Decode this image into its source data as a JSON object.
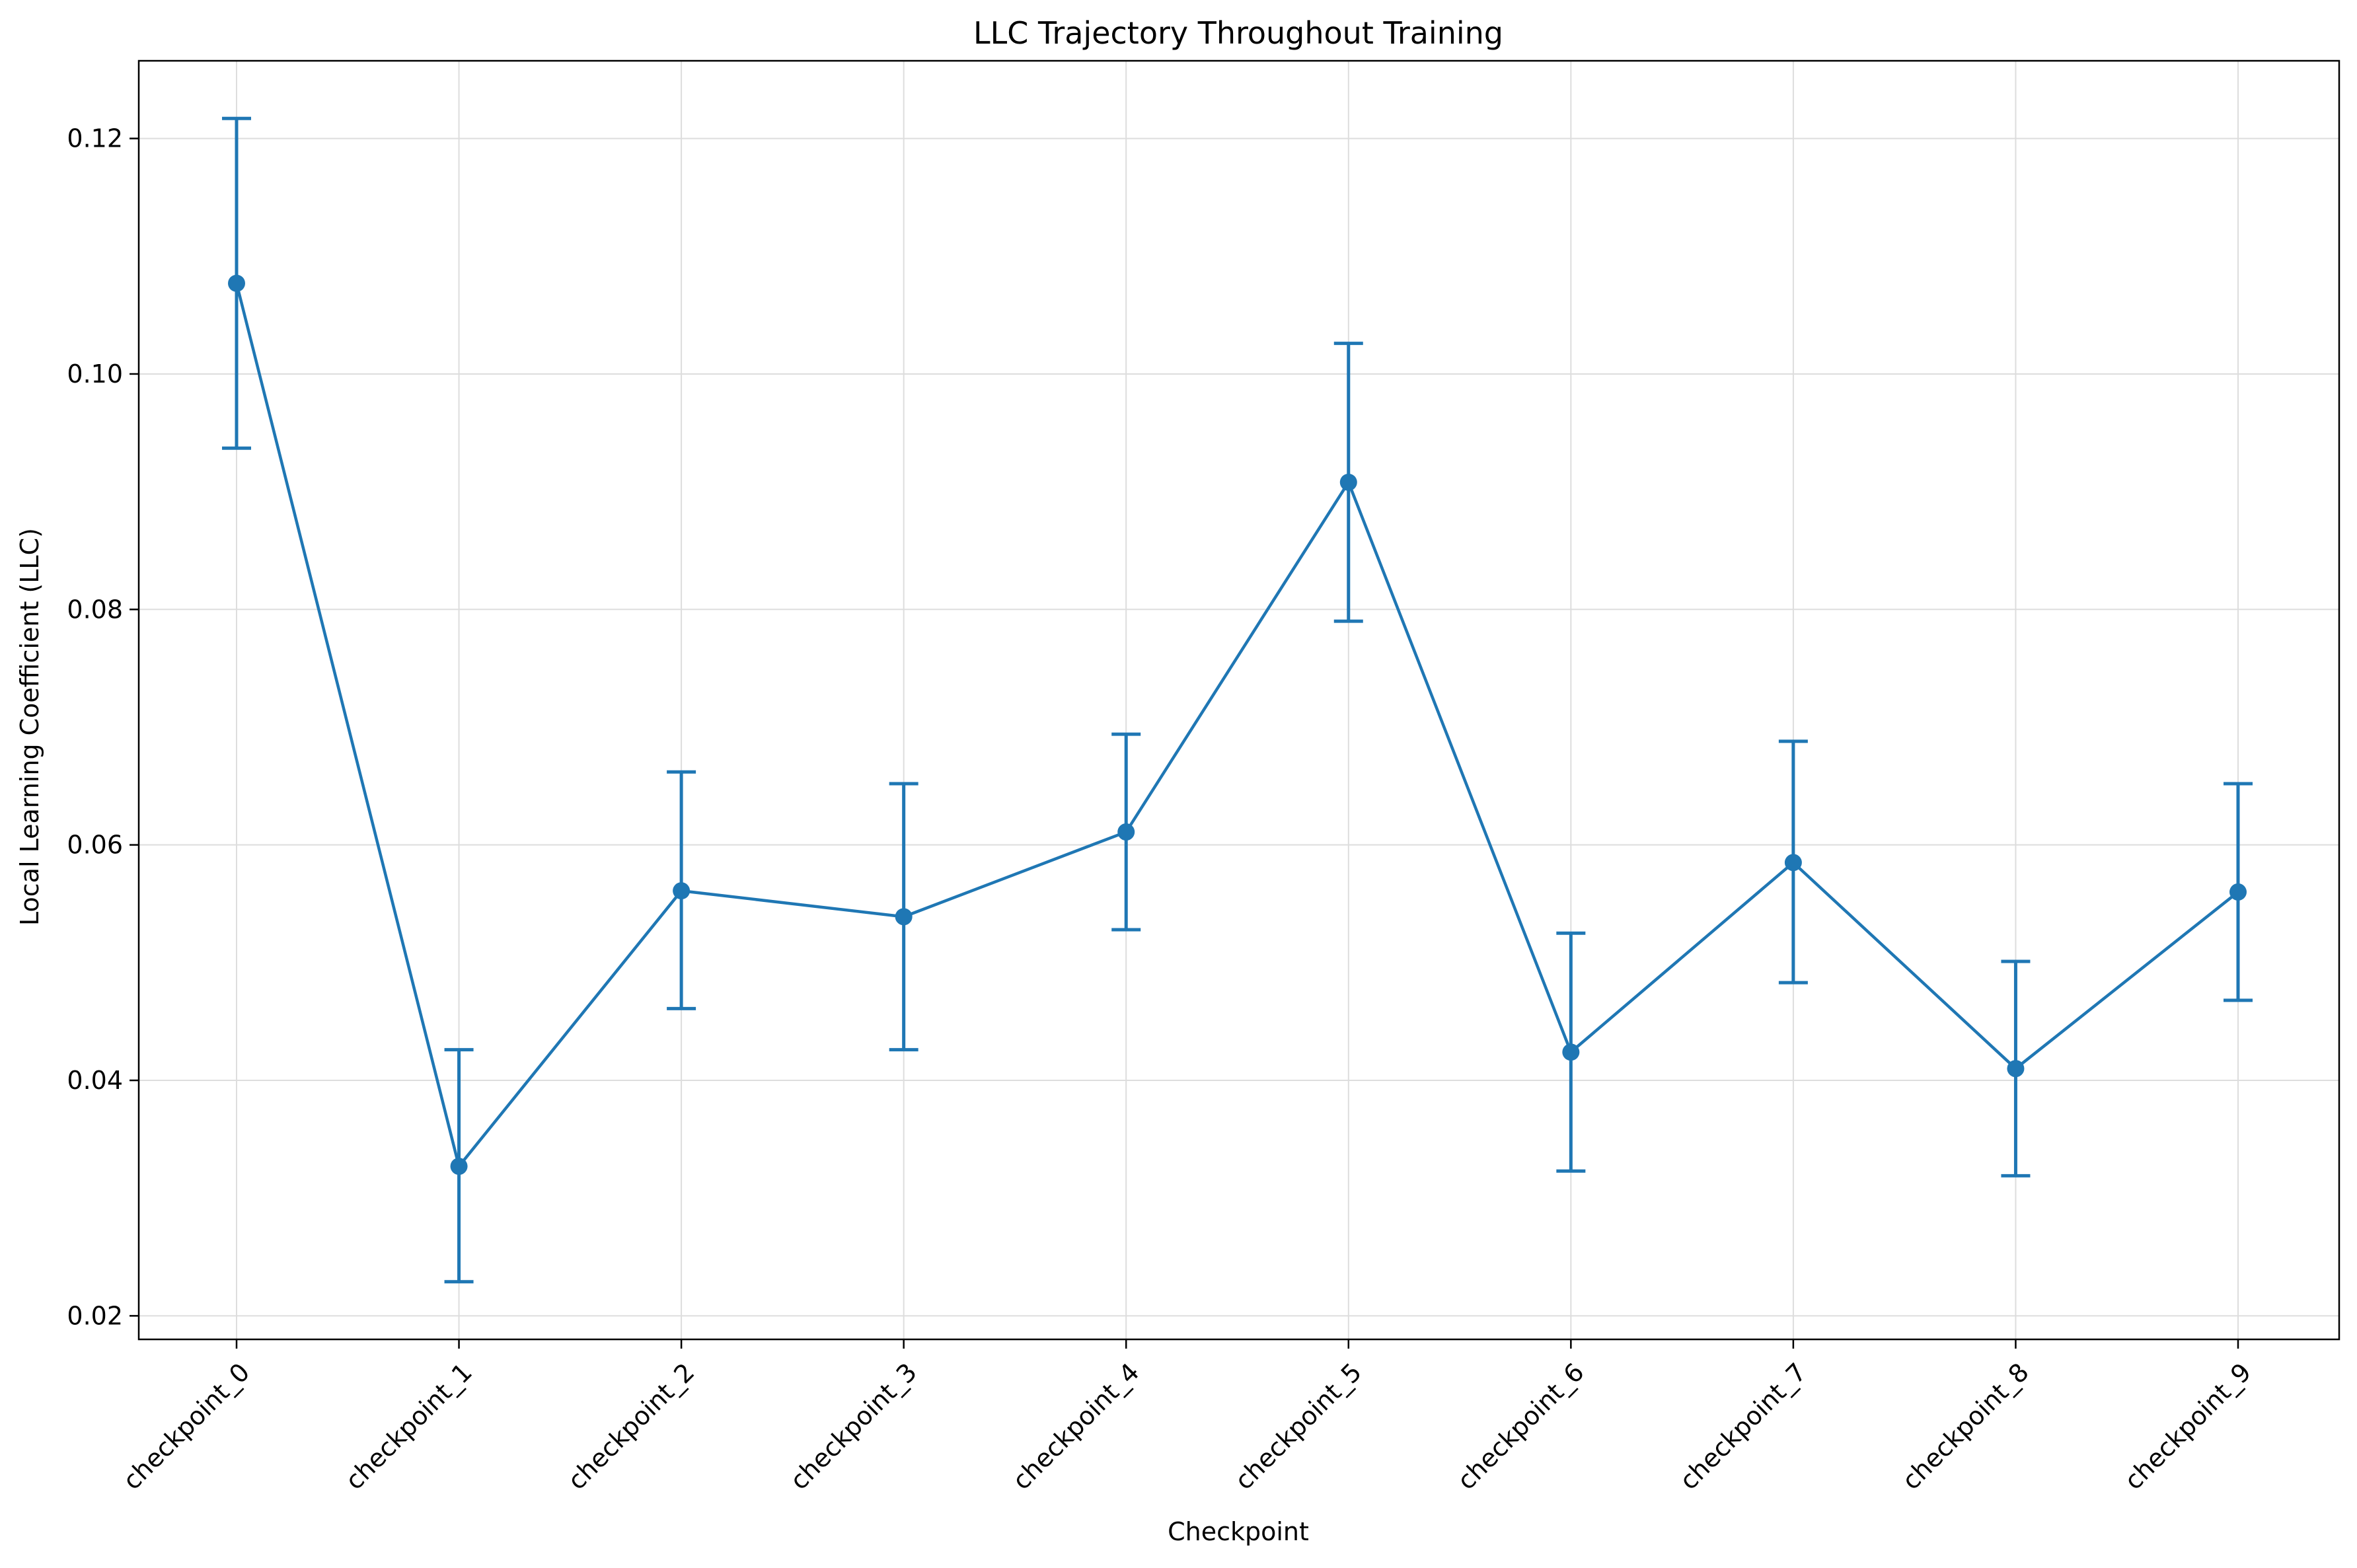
{
  "chart_data": {
    "type": "line",
    "title": "LLC Trajectory Throughout Training",
    "xlabel": "Checkpoint",
    "ylabel": "Local Learning Coefficient (LLC)",
    "categories": [
      "checkpoint_0",
      "checkpoint_1",
      "checkpoint_2",
      "checkpoint_3",
      "checkpoint_4",
      "checkpoint_5",
      "checkpoint_6",
      "checkpoint_7",
      "checkpoint_8",
      "checkpoint_9"
    ],
    "series": [
      {
        "values": [
          0.1077,
          0.0327,
          0.0561,
          0.0539,
          0.0611,
          0.0908,
          0.0424,
          0.0585,
          0.041,
          0.056
        ],
        "error_low": [
          0.0937,
          0.0229,
          0.0461,
          0.0426,
          0.0528,
          0.079,
          0.0323,
          0.0483,
          0.0319,
          0.0468
        ],
        "error_high": [
          0.1217,
          0.0426,
          0.0662,
          0.0652,
          0.0694,
          0.1026,
          0.0525,
          0.0688,
          0.0501,
          0.0652
        ],
        "color": "#1f77b4"
      }
    ],
    "ylim": [
      0.018,
      0.1266
    ],
    "yticks": [
      0.02,
      0.04,
      0.06,
      0.08,
      0.1,
      0.12
    ],
    "ytick_labels": [
      "0.02",
      "0.04",
      "0.06",
      "0.08",
      "0.10",
      "0.12"
    ],
    "grid": true,
    "legend": "none"
  }
}
